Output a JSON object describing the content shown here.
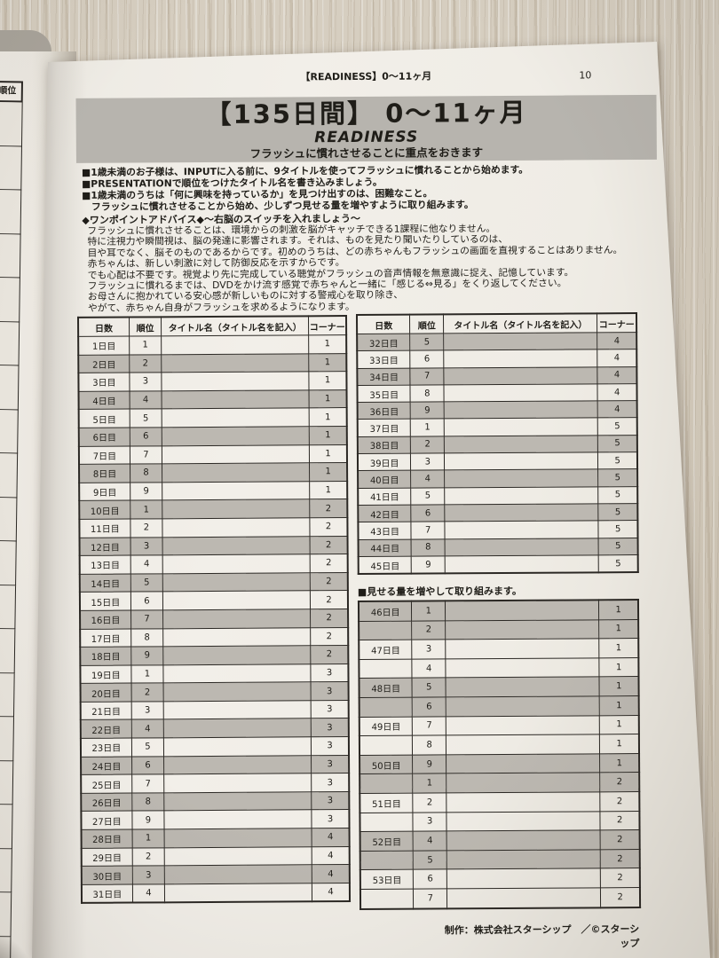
{
  "colors": {
    "band_gray": "#b7b4ae",
    "row_gray": "#bcb8b1",
    "page_paper": "#f1eee8",
    "desk_wood": "#d2c9ba",
    "table_line": "#2b2824"
  },
  "left_page_edge": {
    "header_label": "順位",
    "empty_row_count": 20
  },
  "page": {
    "running_header": "【READINESS】0～11ヶ月",
    "page_number": "10",
    "title_block": {
      "duration": "【135日間】 0～11ヶ月",
      "program": "READINESS",
      "subtitle": "フラッシュに慣れさせることに重点をおきます"
    },
    "intro_bullets": [
      "■1歳未満のお子様は、INPUTに入る前に、9タイトルを使ってフラッシュに慣れることから始めます。",
      "■PRESENTATIONで順位をつけたタイトル名を書き込みましょう。",
      "■1歳未満のうちは「何に興味を持っているか」を見つけ出すのは、困難なこと。",
      "　フラッシュに慣れさせることから始め、少しずつ見せる量を増やすように取り組みます。"
    ],
    "advice": {
      "heading": "◆ワンポイントアドバイス◆～右脳のスイッチを入れましょう～",
      "lines": [
        "フラッシュに慣れさせることは、環境からの刺激を脳がキャッチできる1課程に他なりません。",
        "特に注視力や瞬間視は、脳の発達に影響されます。それは、ものを見たり聞いたりしているのは、",
        "目や耳でなく、脳そのものであるからです。初めのうちは、どの赤ちゃんもフラッシュの画面を直視することはありません。",
        "赤ちゃんは、新しい刺激に対して防御反応を示すからです。",
        "でも心配は不要です。視覚より先に完成している聴覚がフラッシュの音声情報を無意識に捉え、記憶しています。",
        "フラッシュに慣れるまでは、DVDをかけ流す感覚で赤ちゃんと一緒に「感じる⇔見る」をくり返してください。",
        "お母さんに抱かれている安心感が新しいものに対する警戒心を取り除き、",
        "やがて、赤ちゃん自身がフラッシュを求めるようになります。"
      ]
    },
    "note_between_tables": "■見せる量を増やして取り組みます。",
    "footer": "制作：株式会社スターシップ　／©スターシップ"
  },
  "tables": {
    "headers": [
      "日数",
      "順位",
      "タイトル名（タイトル名を記入）",
      "コーナー"
    ],
    "column_widths": [
      "19%",
      "12%",
      "55%",
      "14%"
    ],
    "left_rows": [
      {
        "d": "1日目",
        "r": "1",
        "t": "",
        "c": "1",
        "s": false
      },
      {
        "d": "2日目",
        "r": "2",
        "t": "",
        "c": "1",
        "s": true
      },
      {
        "d": "3日目",
        "r": "3",
        "t": "",
        "c": "1",
        "s": false
      },
      {
        "d": "4日目",
        "r": "4",
        "t": "",
        "c": "1",
        "s": true
      },
      {
        "d": "5日目",
        "r": "5",
        "t": "",
        "c": "1",
        "s": false
      },
      {
        "d": "6日目",
        "r": "6",
        "t": "",
        "c": "1",
        "s": true
      },
      {
        "d": "7日目",
        "r": "7",
        "t": "",
        "c": "1",
        "s": false
      },
      {
        "d": "8日目",
        "r": "8",
        "t": "",
        "c": "1",
        "s": true
      },
      {
        "d": "9日目",
        "r": "9",
        "t": "",
        "c": "1",
        "s": false
      },
      {
        "d": "10日目",
        "r": "1",
        "t": "",
        "c": "2",
        "s": true
      },
      {
        "d": "11日目",
        "r": "2",
        "t": "",
        "c": "2",
        "s": false
      },
      {
        "d": "12日目",
        "r": "3",
        "t": "",
        "c": "2",
        "s": true
      },
      {
        "d": "13日目",
        "r": "4",
        "t": "",
        "c": "2",
        "s": false
      },
      {
        "d": "14日目",
        "r": "5",
        "t": "",
        "c": "2",
        "s": true
      },
      {
        "d": "15日目",
        "r": "6",
        "t": "",
        "c": "2",
        "s": false
      },
      {
        "d": "16日目",
        "r": "7",
        "t": "",
        "c": "2",
        "s": true
      },
      {
        "d": "17日目",
        "r": "8",
        "t": "",
        "c": "2",
        "s": false
      },
      {
        "d": "18日目",
        "r": "9",
        "t": "",
        "c": "2",
        "s": true
      },
      {
        "d": "19日目",
        "r": "1",
        "t": "",
        "c": "3",
        "s": false
      },
      {
        "d": "20日目",
        "r": "2",
        "t": "",
        "c": "3",
        "s": true
      },
      {
        "d": "21日目",
        "r": "3",
        "t": "",
        "c": "3",
        "s": false
      },
      {
        "d": "22日目",
        "r": "4",
        "t": "",
        "c": "3",
        "s": true
      },
      {
        "d": "23日目",
        "r": "5",
        "t": "",
        "c": "3",
        "s": false
      },
      {
        "d": "24日目",
        "r": "6",
        "t": "",
        "c": "3",
        "s": true
      },
      {
        "d": "25日目",
        "r": "7",
        "t": "",
        "c": "3",
        "s": false
      },
      {
        "d": "26日目",
        "r": "8",
        "t": "",
        "c": "3",
        "s": true
      },
      {
        "d": "27日目",
        "r": "9",
        "t": "",
        "c": "3",
        "s": false
      },
      {
        "d": "28日目",
        "r": "1",
        "t": "",
        "c": "4",
        "s": true
      },
      {
        "d": "29日目",
        "r": "2",
        "t": "",
        "c": "4",
        "s": false
      },
      {
        "d": "30日目",
        "r": "3",
        "t": "",
        "c": "4",
        "s": true
      },
      {
        "d": "31日目",
        "r": "4",
        "t": "",
        "c": "4",
        "s": false
      }
    ],
    "right_top_rows": [
      {
        "d": "32日目",
        "r": "5",
        "t": "",
        "c": "4",
        "s": true
      },
      {
        "d": "33日目",
        "r": "6",
        "t": "",
        "c": "4",
        "s": false
      },
      {
        "d": "34日目",
        "r": "7",
        "t": "",
        "c": "4",
        "s": true
      },
      {
        "d": "35日目",
        "r": "8",
        "t": "",
        "c": "4",
        "s": false
      },
      {
        "d": "36日目",
        "r": "9",
        "t": "",
        "c": "4",
        "s": true
      },
      {
        "d": "37日目",
        "r": "1",
        "t": "",
        "c": "5",
        "s": false
      },
      {
        "d": "38日目",
        "r": "2",
        "t": "",
        "c": "5",
        "s": true
      },
      {
        "d": "39日目",
        "r": "3",
        "t": "",
        "c": "5",
        "s": false
      },
      {
        "d": "40日目",
        "r": "4",
        "t": "",
        "c": "5",
        "s": true
      },
      {
        "d": "41日目",
        "r": "5",
        "t": "",
        "c": "5",
        "s": false
      },
      {
        "d": "42日目",
        "r": "6",
        "t": "",
        "c": "5",
        "s": true
      },
      {
        "d": "43日目",
        "r": "7",
        "t": "",
        "c": "5",
        "s": false
      },
      {
        "d": "44日目",
        "r": "8",
        "t": "",
        "c": "5",
        "s": true
      },
      {
        "d": "45日目",
        "r": "9",
        "t": "",
        "c": "5",
        "s": false
      }
    ],
    "right_bottom_rows": [
      {
        "d": "46日目",
        "r": "1",
        "t": "",
        "c": "1",
        "s": true
      },
      {
        "d": "",
        "r": "2",
        "t": "",
        "c": "1",
        "s": true
      },
      {
        "d": "47日目",
        "r": "3",
        "t": "",
        "c": "1",
        "s": false
      },
      {
        "d": "",
        "r": "4",
        "t": "",
        "c": "1",
        "s": false
      },
      {
        "d": "48日目",
        "r": "5",
        "t": "",
        "c": "1",
        "s": true
      },
      {
        "d": "",
        "r": "6",
        "t": "",
        "c": "1",
        "s": true
      },
      {
        "d": "49日目",
        "r": "7",
        "t": "",
        "c": "1",
        "s": false
      },
      {
        "d": "",
        "r": "8",
        "t": "",
        "c": "1",
        "s": false
      },
      {
        "d": "50日目",
        "r": "9",
        "t": "",
        "c": "1",
        "s": true
      },
      {
        "d": "",
        "r": "1",
        "t": "",
        "c": "2",
        "s": true
      },
      {
        "d": "51日目",
        "r": "2",
        "t": "",
        "c": "2",
        "s": false
      },
      {
        "d": "",
        "r": "3",
        "t": "",
        "c": "2",
        "s": false
      },
      {
        "d": "52日目",
        "r": "4",
        "t": "",
        "c": "2",
        "s": true
      },
      {
        "d": "",
        "r": "5",
        "t": "",
        "c": "2",
        "s": true
      },
      {
        "d": "53日目",
        "r": "6",
        "t": "",
        "c": "2",
        "s": false
      },
      {
        "d": "",
        "r": "7",
        "t": "",
        "c": "2",
        "s": false
      }
    ]
  }
}
